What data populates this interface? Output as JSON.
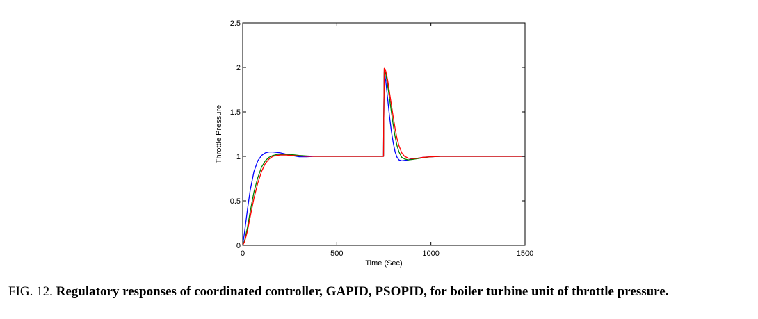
{
  "chart_data": {
    "type": "line",
    "title": "",
    "xlabel": "Time (Sec)",
    "ylabel": "Throttle Pressure",
    "xlim": [
      0,
      1500
    ],
    "ylim": [
      0,
      2.5
    ],
    "xticks": [
      0,
      500,
      1000,
      1500
    ],
    "yticks": [
      0,
      0.5,
      1,
      1.5,
      2,
      2.5
    ],
    "xtick_labels": [
      "0",
      "500",
      "1000",
      "1500"
    ],
    "ytick_labels": [
      "0",
      "0.5",
      "1",
      "1.5",
      "2",
      "2.5"
    ],
    "grid": false,
    "legend": "none",
    "series": [
      {
        "color": "#0000ff",
        "x": [
          0,
          10,
          25,
          40,
          60,
          80,
          100,
          120,
          140,
          160,
          180,
          200,
          230,
          260,
          300,
          340,
          380,
          450,
          550,
          650,
          748,
          749,
          752,
          760,
          770,
          780,
          790,
          800,
          810,
          820,
          830,
          845,
          860,
          880,
          900,
          930,
          960,
          1000,
          1050,
          1100,
          1200,
          1350,
          1500
        ],
        "y": [
          0,
          0.15,
          0.4,
          0.62,
          0.83,
          0.95,
          1.01,
          1.04,
          1.05,
          1.05,
          1.045,
          1.04,
          1.025,
          1.01,
          0.995,
          0.995,
          1.0,
          1.0,
          1.0,
          1.0,
          1.0,
          1.3,
          1.95,
          1.85,
          1.65,
          1.45,
          1.28,
          1.15,
          1.05,
          0.99,
          0.96,
          0.95,
          0.955,
          0.96,
          0.97,
          0.98,
          0.99,
          0.995,
          1.0,
          1.0,
          1.0,
          1.0,
          1.0
        ]
      },
      {
        "color": "#008000",
        "x": [
          0,
          10,
          25,
          40,
          60,
          80,
          100,
          120,
          140,
          160,
          180,
          200,
          230,
          260,
          300,
          340,
          380,
          450,
          550,
          650,
          748,
          749,
          752,
          760,
          770,
          780,
          790,
          800,
          810,
          820,
          830,
          845,
          860,
          880,
          900,
          930,
          960,
          1000,
          1050,
          1100,
          1200,
          1350,
          1500
        ],
        "y": [
          0,
          0.05,
          0.2,
          0.38,
          0.6,
          0.76,
          0.88,
          0.95,
          0.99,
          1.01,
          1.02,
          1.025,
          1.025,
          1.02,
          1.01,
          1.005,
          1.0,
          1.0,
          1.0,
          1.0,
          1.0,
          1.3,
          1.97,
          1.93,
          1.8,
          1.65,
          1.5,
          1.35,
          1.22,
          1.12,
          1.05,
          0.99,
          0.97,
          0.96,
          0.965,
          0.975,
          0.985,
          0.995,
          1.0,
          1.0,
          1.0,
          1.0,
          1.0
        ]
      },
      {
        "color": "#ff0000",
        "x": [
          0,
          10,
          25,
          40,
          60,
          80,
          100,
          120,
          140,
          160,
          180,
          200,
          230,
          260,
          300,
          340,
          380,
          450,
          550,
          650,
          748,
          749,
          752,
          760,
          770,
          780,
          790,
          800,
          810,
          820,
          830,
          845,
          860,
          880,
          900,
          930,
          960,
          1000,
          1050,
          1100,
          1200,
          1350,
          1500
        ],
        "y": [
          0,
          0.04,
          0.16,
          0.32,
          0.53,
          0.7,
          0.83,
          0.92,
          0.97,
          1.0,
          1.01,
          1.015,
          1.015,
          1.01,
          1.005,
          1.0,
          1.0,
          1.0,
          1.0,
          1.0,
          1.0,
          1.3,
          1.99,
          1.96,
          1.86,
          1.72,
          1.58,
          1.44,
          1.31,
          1.2,
          1.12,
          1.04,
          1.0,
          0.98,
          0.975,
          0.98,
          0.99,
          0.995,
          1.0,
          1.0,
          1.0,
          1.0,
          1.0
        ]
      }
    ]
  },
  "caption": {
    "prefix": "FIG. 12. ",
    "text": "Regulatory responses of coordinated controller, GAPID, PSOPID, for boiler turbine unit of throttle pressure."
  }
}
